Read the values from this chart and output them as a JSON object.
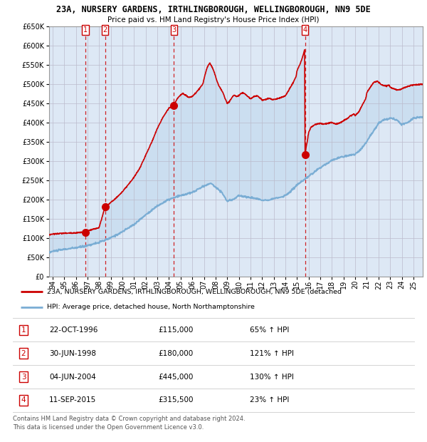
{
  "title": "23A, NURSERY GARDENS, IRTHLINGBOROUGH, WELLINGBOROUGH, NN9 5DE",
  "subtitle": "Price paid vs. HM Land Registry's House Price Index (HPI)",
  "legend_line1": "23A, NURSERY GARDENS, IRTHLINGBOROUGH, WELLINGBOROUGH, NN9 5DE (detached",
  "legend_line2": "HPI: Average price, detached house, North Northamptonshire",
  "footer1": "Contains HM Land Registry data © Crown copyright and database right 2024.",
  "footer2": "This data is licensed under the Open Government Licence v3.0.",
  "sales": [
    {
      "num": 1,
      "date_label": "22-OCT-1996",
      "date_x": 1996.81,
      "price": 115000,
      "pct": "65%",
      "dir": "↑"
    },
    {
      "num": 2,
      "date_label": "30-JUN-1998",
      "date_x": 1998.5,
      "price": 180000,
      "pct": "121%",
      "dir": "↑"
    },
    {
      "num": 3,
      "date_label": "04-JUN-2004",
      "date_x": 2004.42,
      "price": 445000,
      "pct": "130%",
      "dir": "↑"
    },
    {
      "num": 4,
      "date_label": "11-SEP-2015",
      "date_x": 2015.69,
      "price": 315500,
      "pct": "23%",
      "dir": "↑"
    }
  ],
  "ylim": [
    0,
    650000
  ],
  "xlim_start": 1993.7,
  "xlim_end": 2025.8,
  "yticks": [
    0,
    50000,
    100000,
    150000,
    200000,
    250000,
    300000,
    350000,
    400000,
    450000,
    500000,
    550000,
    600000,
    650000
  ],
  "xticks": [
    1994,
    1995,
    1996,
    1997,
    1998,
    1999,
    2000,
    2001,
    2002,
    2003,
    2004,
    2005,
    2006,
    2007,
    2008,
    2009,
    2010,
    2011,
    2012,
    2013,
    2014,
    2015,
    2016,
    2017,
    2018,
    2019,
    2020,
    2021,
    2022,
    2023,
    2024,
    2025
  ],
  "hpi_color": "#7aadd4",
  "price_color": "#cc0000",
  "sale_dot_color": "#cc0000",
  "vline_color": "#cc0000",
  "bg_chart_color": "#dde8f5",
  "grid_color": "#bbbbcc",
  "box_color": "#cc0000",
  "hatch_color": "#c8d0dc"
}
